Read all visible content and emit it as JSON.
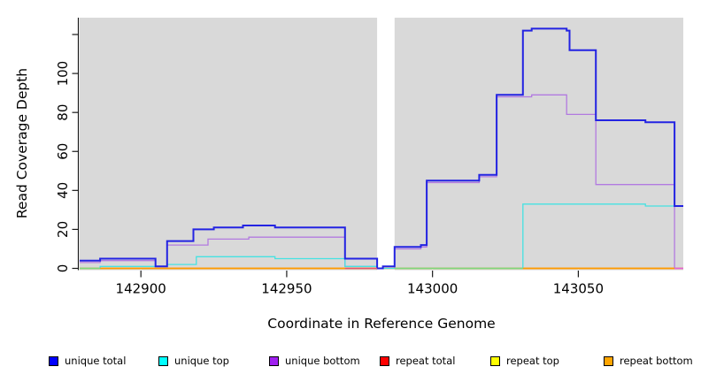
{
  "chart_data": {
    "type": "line",
    "subtype": "step",
    "title": "",
    "xlabel": "Coordinate in Reference Genome",
    "ylabel": "Read Coverage Depth",
    "xlim": [
      142879,
      143086
    ],
    "ylim": [
      0,
      129
    ],
    "xticks": [
      142900,
      142950,
      143000,
      143050
    ],
    "yticks": [
      0,
      20,
      40,
      60,
      80,
      100,
      120
    ],
    "ytick_labels": [
      "0",
      "20",
      "40",
      "60",
      "80",
      "100",
      ""
    ],
    "grid": false,
    "legend_position": "bottom",
    "plot_background": "#d9d9d9",
    "axis_color": "#1a1a1a",
    "gap_region": {
      "from": 142981,
      "to": 142987,
      "color": "#ffffff"
    },
    "series": [
      {
        "name": "unique total",
        "color": "#2323e2",
        "width": 2,
        "steps": [
          [
            142879,
            4
          ],
          [
            142886,
            5
          ],
          [
            142905,
            1
          ],
          [
            142909,
            14
          ],
          [
            142918,
            20
          ],
          [
            142925,
            21
          ],
          [
            142935,
            22
          ],
          [
            142946,
            21
          ],
          [
            142970,
            5
          ],
          [
            142981,
            0
          ],
          [
            142983,
            1
          ],
          [
            142987,
            11
          ],
          [
            142996,
            12
          ],
          [
            142998,
            45
          ],
          [
            143016,
            48
          ],
          [
            143022,
            89
          ],
          [
            143031,
            122
          ],
          [
            143034,
            123
          ],
          [
            143046,
            122
          ],
          [
            143047,
            112
          ],
          [
            143056,
            76
          ],
          [
            143073,
            75
          ],
          [
            143083,
            32
          ],
          [
            143086,
            32
          ]
        ]
      },
      {
        "name": "unique top",
        "color": "#45e2e2",
        "width": 1.3,
        "steps": [
          [
            142879,
            0
          ],
          [
            142886,
            1
          ],
          [
            142909,
            2
          ],
          [
            142919,
            6
          ],
          [
            142946,
            5
          ],
          [
            142970,
            1
          ],
          [
            142981,
            0
          ],
          [
            143031,
            33
          ],
          [
            143073,
            32
          ],
          [
            143086,
            32
          ]
        ]
      },
      {
        "name": "unique bottom",
        "color": "#b27ae0",
        "width": 1.3,
        "steps": [
          [
            142879,
            3
          ],
          [
            142886,
            4
          ],
          [
            142905,
            1
          ],
          [
            142909,
            12
          ],
          [
            142923,
            15
          ],
          [
            142937,
            16
          ],
          [
            142970,
            1
          ],
          [
            142981,
            0
          ],
          [
            142987,
            10
          ],
          [
            142996,
            11
          ],
          [
            142998,
            44
          ],
          [
            143016,
            47
          ],
          [
            143022,
            88
          ],
          [
            143034,
            89
          ],
          [
            143046,
            79
          ],
          [
            143056,
            43
          ],
          [
            143083,
            0
          ],
          [
            143086,
            0
          ]
        ]
      },
      {
        "name": "repeat total",
        "color": "#e11414",
        "width": 1.3,
        "steps": [
          [
            142879,
            0
          ],
          [
            143086,
            0
          ]
        ]
      },
      {
        "name": "repeat top",
        "color": "#ffff00",
        "width": 1.3,
        "steps": [
          [
            142879,
            0
          ],
          [
            143086,
            0
          ]
        ]
      },
      {
        "name": "repeat bottom",
        "color": "#ff9a00",
        "width": 1.6,
        "steps": [
          [
            142879,
            0
          ],
          [
            143086,
            0
          ]
        ]
      }
    ],
    "baseline_segments": [
      {
        "from": 142879,
        "to": 142886,
        "color": "#7ed87e"
      },
      {
        "from": 142886,
        "to": 142970,
        "color": "#ff9a00"
      },
      {
        "from": 142970,
        "to": 142981,
        "color": "#e25570"
      },
      {
        "from": 142987,
        "to": 143031,
        "color": "#7ed87e"
      },
      {
        "from": 143031,
        "to": 143083,
        "color": "#ff9a00"
      },
      {
        "from": 143083,
        "to": 143086,
        "color": "#e263d7"
      }
    ]
  },
  "legend": {
    "items": [
      {
        "label": "unique total",
        "color": "#0000ff"
      },
      {
        "label": "unique top",
        "color": "#00ffff"
      },
      {
        "label": "unique bottom",
        "color": "#a020f0"
      },
      {
        "label": "repeat total",
        "color": "#ff0000"
      },
      {
        "label": "repeat top",
        "color": "#ffff00"
      },
      {
        "label": "repeat bottom",
        "color": "#ffa500"
      }
    ]
  }
}
